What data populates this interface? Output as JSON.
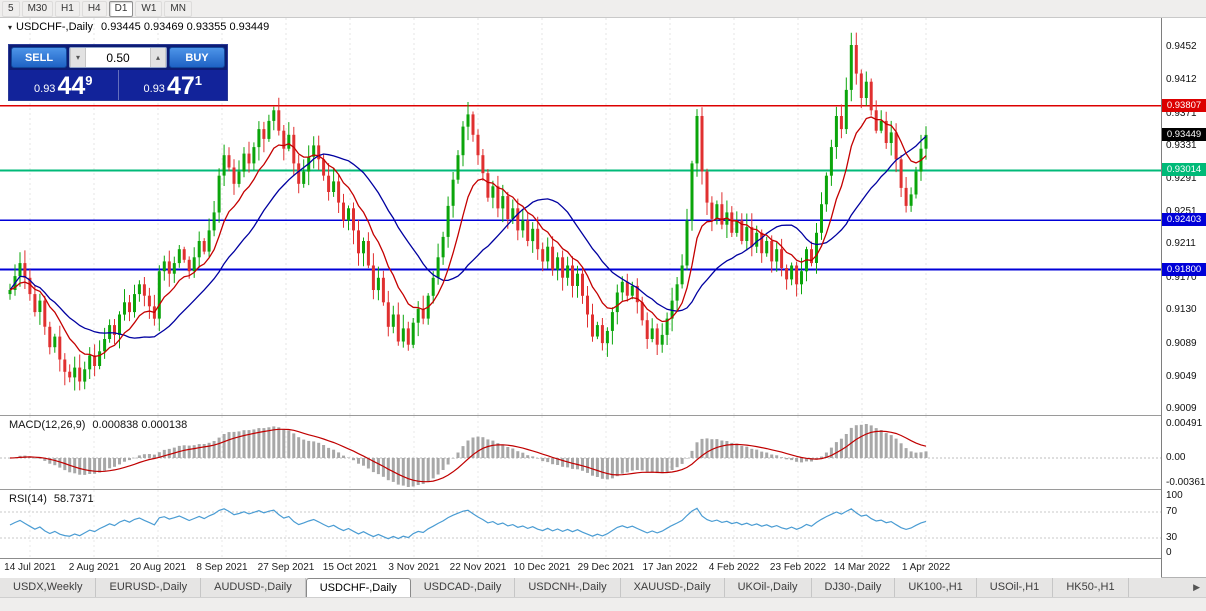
{
  "toolbar": {
    "timeframes": [
      "5",
      "M30",
      "H1",
      "H4",
      "D1",
      "W1",
      "MN"
    ],
    "active_timeframe": "D1"
  },
  "icons": {
    "chart_menu": "▾",
    "volume_down": "▾",
    "volume_up": "▴",
    "tab_scroll_right": "▶"
  },
  "chart_header": {
    "symbol": "USDCHF-,Daily",
    "ohlc_text": "0.93445 0.93469 0.93355 0.93449"
  },
  "trade_panel": {
    "sell_label": "SELL",
    "buy_label": "BUY",
    "volume": "0.50",
    "sell_price": {
      "prefix": "0.93",
      "big": "44",
      "sup": "9"
    },
    "buy_price": {
      "prefix": "0.93",
      "big": "47",
      "sup": "1"
    }
  },
  "chart_data": {
    "type": "candlestick",
    "title": "USDCHF-,Daily",
    "current_bar": {
      "open": 0.93445,
      "high": 0.93469,
      "low": 0.93355,
      "close": 0.93449
    },
    "y_axis": {
      "ticks": [
        "0.9452",
        "0.9412",
        "0.9371",
        "0.9331",
        "0.9291",
        "0.9251",
        "0.9211",
        "0.9170",
        "0.9130",
        "0.9089",
        "0.9049",
        "0.9009"
      ],
      "range": [
        0.9002,
        0.9488
      ]
    },
    "x_labels": [
      "14 Jul 2021",
      "2 Aug 2021",
      "20 Aug 2021",
      "8 Sep 2021",
      "27 Sep 2021",
      "15 Oct 2021",
      "3 Nov 2021",
      "22 Nov 2021",
      "10 Dec 2021",
      "29 Dec 2021",
      "17 Jan 2022",
      "4 Feb 2022",
      "23 Feb 2022",
      "14 Mar 2022",
      "1 Apr 2022"
    ],
    "first_open": 0.915,
    "closes": [
      0.9155,
      0.9172,
      0.9188,
      0.917,
      0.915,
      0.9128,
      0.9142,
      0.911,
      0.9085,
      0.9098,
      0.907,
      0.9055,
      0.9048,
      0.906,
      0.9043,
      0.9058,
      0.9075,
      0.9062,
      0.908,
      0.9095,
      0.9112,
      0.91,
      0.9125,
      0.914,
      0.9128,
      0.915,
      0.9162,
      0.9148,
      0.9135,
      0.912,
      0.9178,
      0.919,
      0.9175,
      0.9188,
      0.9205,
      0.9192,
      0.9178,
      0.9195,
      0.9215,
      0.9202,
      0.9228,
      0.925,
      0.9295,
      0.932,
      0.9305,
      0.9285,
      0.93,
      0.9322,
      0.931,
      0.933,
      0.9352,
      0.934,
      0.9362,
      0.9375,
      0.935,
      0.9328,
      0.9345,
      0.931,
      0.9285,
      0.93,
      0.9318,
      0.9332,
      0.9315,
      0.9295,
      0.9275,
      0.9288,
      0.9262,
      0.924,
      0.9255,
      0.9228,
      0.92,
      0.9215,
      0.9185,
      0.9155,
      0.917,
      0.914,
      0.911,
      0.9125,
      0.9092,
      0.9108,
      0.9088,
      0.9115,
      0.9132,
      0.912,
      0.9148,
      0.917,
      0.9195,
      0.922,
      0.9258,
      0.929,
      0.932,
      0.9355,
      0.937,
      0.9345,
      0.932,
      0.9298,
      0.9268,
      0.9282,
      0.9255,
      0.927,
      0.9242,
      0.9255,
      0.9228,
      0.924,
      0.9215,
      0.923,
      0.9205,
      0.919,
      0.9208,
      0.918,
      0.9195,
      0.917,
      0.9185,
      0.916,
      0.9175,
      0.9148,
      0.9125,
      0.9098,
      0.9112,
      0.909,
      0.9105,
      0.9128,
      0.9152,
      0.9165,
      0.9148,
      0.916,
      0.914,
      0.9118,
      0.9095,
      0.9108,
      0.9088,
      0.91,
      0.912,
      0.9142,
      0.9162,
      0.9185,
      0.924,
      0.931,
      0.9368,
      0.93,
      0.9262,
      0.9242,
      0.926,
      0.9235,
      0.925,
      0.9225,
      0.924,
      0.9215,
      0.9232,
      0.9208,
      0.9225,
      0.92,
      0.9215,
      0.919,
      0.9205,
      0.9182,
      0.9168,
      0.9185,
      0.9162,
      0.9178,
      0.9205,
      0.9188,
      0.9225,
      0.926,
      0.9295,
      0.933,
      0.9368,
      0.9352,
      0.94,
      0.9455,
      0.942,
      0.939,
      0.941,
      0.9375,
      0.935,
      0.9362,
      0.9335,
      0.9348,
      0.9315,
      0.928,
      0.9258,
      0.9272,
      0.93,
      0.9328,
      0.93449
    ],
    "candle_colors": {
      "up": "#0BA50B",
      "down": "#E03030"
    },
    "price_lines": [
      {
        "price": 0.93807,
        "label": "0.93807",
        "color": "#DC0000",
        "width": 1.5
      },
      {
        "price": 0.93014,
        "label": "0.93014",
        "color": "#00BA78",
        "width": 1.8
      },
      {
        "price": 0.92403,
        "label": "0.92403",
        "color": "#0000D8",
        "width": 1.8
      },
      {
        "price": 0.918,
        "label": "0.91800",
        "color": "#0000D8",
        "width": 1.8
      }
    ],
    "bid_badge": {
      "price": 0.93449,
      "label": "0.93449",
      "color": "#000000"
    },
    "overlays": [
      {
        "name": "fast-ma",
        "type": "ema",
        "period": 10,
        "color": "#C40000"
      },
      {
        "name": "slow-ma",
        "type": "sma",
        "period": 22,
        "color": "#0000A0"
      }
    ],
    "indicators": {
      "macd": {
        "label": "MACD(12,26,9)",
        "values_text": "0.000838 0.000138",
        "ticks": [
          "0.00491",
          "0.00",
          "-0.00361"
        ],
        "histogram_color": "#A8A8A8",
        "signal_color": "#C00000",
        "params": [
          12,
          26,
          9
        ]
      },
      "rsi": {
        "label": "RSI(14)",
        "value": "58.7371",
        "ticks": [
          "100",
          "70",
          "30",
          "0"
        ],
        "levels": [
          70,
          30
        ],
        "period": 14,
        "color": "#4A9CD3"
      }
    }
  },
  "bottom_tabs": {
    "items": [
      "USDX,Weekly",
      "EURUSD-,Daily",
      "AUDUSD-,Daily",
      "USDCHF-,Daily",
      "USDCAD-,Daily",
      "USDCNH-,Daily",
      "XAUUSD-,Daily",
      "UKOil-,Daily",
      "DJ30-,Daily",
      "UK100-,H1",
      "USOil-,H1",
      "HK50-,H1"
    ],
    "active": "USDCHF-,Daily"
  }
}
